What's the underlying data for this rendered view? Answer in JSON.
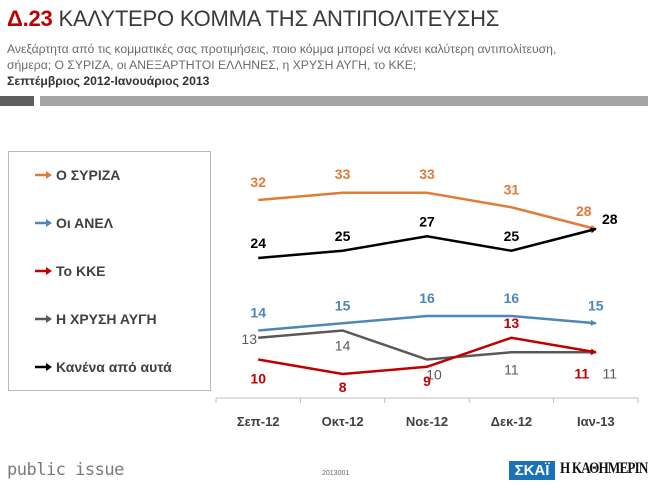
{
  "header": {
    "code": "Δ.23",
    "title": "ΚΑΛΥΤΕΡΟ ΚΟΜΜΑ ΤΗΣ ΑΝΤΙΠΟΛΙΤΕΥΣΗΣ",
    "subtitle_line1": "Ανεξάρτητα από τις κομματικές σας προτιμήσεις, ποιο κόμμα μπορεί να κάνει καλύτερη αντιπολίτευση,",
    "subtitle_line2": "σήμερα; Ο ΣΥΡΙΖΑ, οι ΑΝΕΞΑΡΤΗΤΟΙ ΕΛΛΗΝΕΣ, η ΧΡΥΣΗ ΑΥΓΗ, το ΚΚΕ;",
    "period": "Σεπτέμβριος 2012-Ιανουάριος 2013"
  },
  "footer": {
    "brand": "public issue",
    "code": "2013001",
    "logo_skai": "ΣΚΑΪ",
    "logo_kathimerini": "Η ΚΑΘΗΜΕΡΙΝΗ"
  },
  "chart_data": {
    "type": "line",
    "title": "ΚΑΛΥΤΕΡΟ ΚΟΜΜΑ ΤΗΣ ΑΝΤΙΠΟΛΙΤΕΥΣΗΣ",
    "xlabel": "",
    "ylabel": "",
    "categories": [
      "Σεπ-12",
      "Οκτ-12",
      "Νοε-12",
      "Δεκ-12",
      "Ιαν-13"
    ],
    "ylim": [
      4.5,
      34
    ],
    "grid": false,
    "legend_position": "left",
    "series": [
      {
        "name": "Ο ΣΥΡΙΖΑ",
        "color": "#e07b39",
        "values": [
          32,
          33,
          33,
          31,
          28
        ]
      },
      {
        "name": "Οι ΑΝΕΛ",
        "color": "#4f86b8",
        "values": [
          14,
          15,
          16,
          16,
          15
        ]
      },
      {
        "name": "Το ΚΚΕ",
        "color": "#c00000",
        "values": [
          10,
          8,
          9,
          13,
          11
        ]
      },
      {
        "name": "Η ΧΡΥΣΗ ΑΥΓΗ",
        "color": "#595959",
        "values": [
          13,
          14,
          10,
          11,
          11
        ]
      },
      {
        "name": "Κανένα από αυτά",
        "color": "#000000",
        "values": [
          24,
          25,
          27,
          25,
          28
        ]
      }
    ]
  }
}
